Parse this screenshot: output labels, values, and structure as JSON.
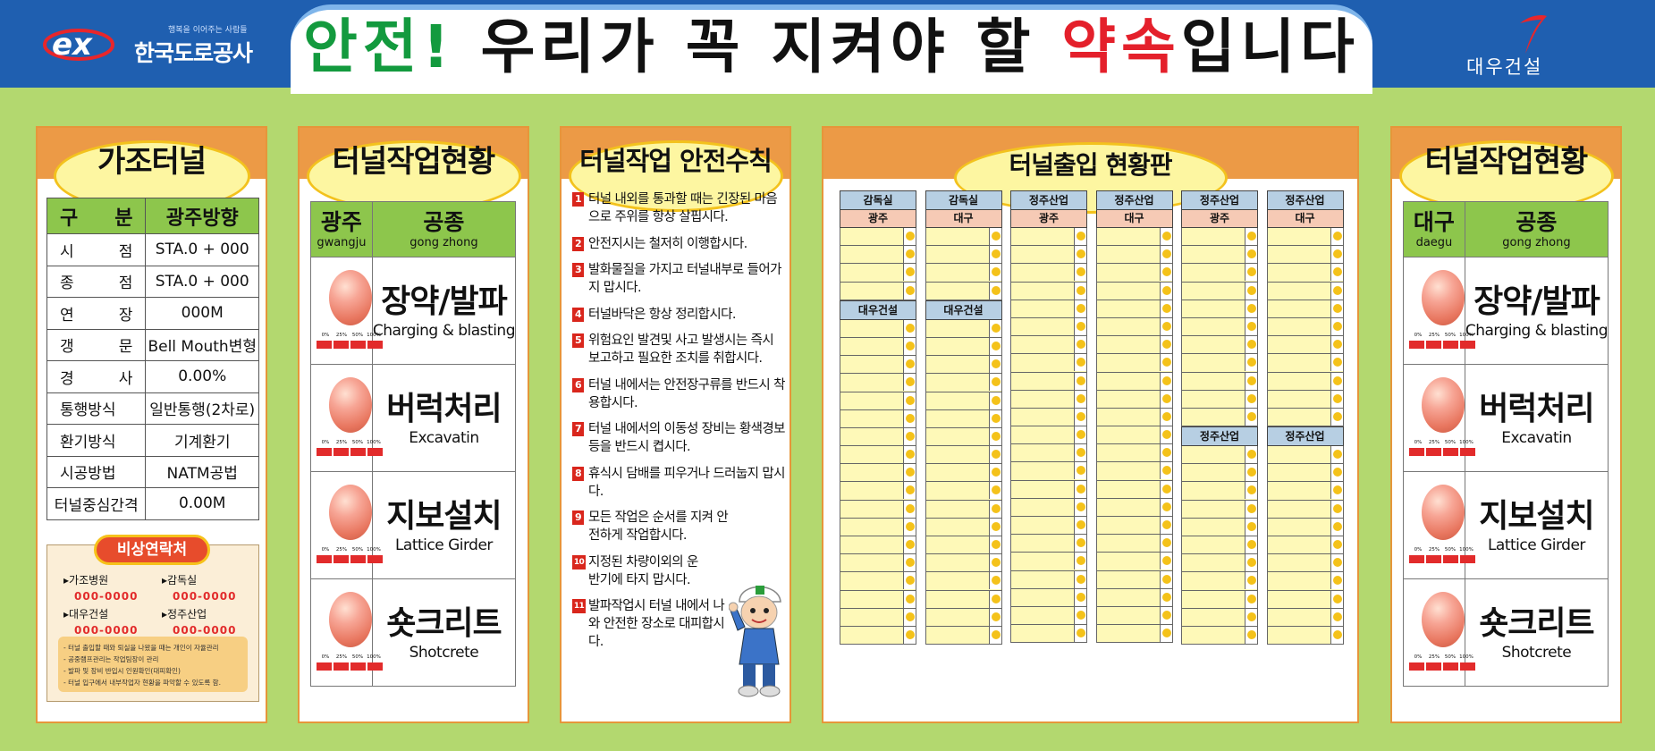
{
  "header": {
    "logo_left": {
      "slogan": "행복을 이어주는 사람들",
      "name": "한국도로공사"
    },
    "title": {
      "part1": "안전!",
      "part2": " 우리가 꼭 지켜야 할 ",
      "part3": "약속",
      "part4": "입니다"
    },
    "logo_right": {
      "name": "대우건설"
    }
  },
  "colors": {
    "header_blue": "#1f5fb0",
    "background_green": "#b3d86f",
    "panel_orange": "#ec9a46",
    "title_green": "#139a3e",
    "title_red": "#e4202b"
  },
  "tunnel_info": {
    "title": "가조터널",
    "head": [
      "구 분",
      "광주방향"
    ],
    "rows": [
      [
        "시 점",
        "STA.0 + 000"
      ],
      [
        "종 점",
        "STA.0 + 000"
      ],
      [
        "연 장",
        "000M"
      ],
      [
        "갱 문",
        "Bell Mouth변형"
      ],
      [
        "경 사",
        "0.00%"
      ],
      [
        "통행방식",
        "일반통행(2차로)"
      ],
      [
        "환기방식",
        "기계환기"
      ],
      [
        "시공방법",
        "NATM공법"
      ],
      [
        "터널중심간격",
        "0.00M"
      ]
    ],
    "emergency": {
      "badge": "비상연락처",
      "contacts": [
        {
          "name": "가조병원",
          "number": "000-0000"
        },
        {
          "name": "감독실",
          "number": "000-0000"
        },
        {
          "name": "대우건설",
          "number": "000-0000"
        },
        {
          "name": "정주산업",
          "number": "000-0000"
        }
      ],
      "notes": [
        "- 터널 출입할 때와 퇴실을 나왔을 때는 개인이 자율관리",
        "- 공중램프관리는 작업팀장이 관리",
        "- 발파 및 장비 반입시 인원확인(대피확인)",
        "- 터널 입구에서 내부작업자 현황을 파악할 수 있도록 함."
      ]
    }
  },
  "work_status_left": {
    "title": "터널작업현황",
    "head": {
      "region_ko": "광주",
      "region_en": "gwangju",
      "work_ko": "공종",
      "work_en": "gong zhong"
    },
    "percent_labels": [
      "0%",
      "25%",
      "50%",
      "100%"
    ],
    "items": [
      {
        "ko": "장약/발파",
        "en": "Charging & blasting",
        "icon": "progress-egg-icon"
      },
      {
        "ko": "버럭처리",
        "en": "Excavatin",
        "icon": "progress-egg-icon"
      },
      {
        "ko": "지보설치",
        "en": "Lattice Girder",
        "icon": "progress-egg-icon"
      },
      {
        "ko": "숏크리트",
        "en": "Shotcrete",
        "icon": "progress-egg-icon"
      }
    ]
  },
  "safety_rules": {
    "title": "터널작업 안전수칙",
    "rules": [
      {
        "n": "1",
        "text": "터널 내외를 통과할 때는 긴장된 마음으로 주위를 항상 살핍시다."
      },
      {
        "n": "2",
        "text": "안전지시는 철저히 이행합시다."
      },
      {
        "n": "3",
        "text": "발화물질을 가지고 터널내부로 들어가지 맙시다."
      },
      {
        "n": "4",
        "text": "터널바닥은 항상 정리합시다."
      },
      {
        "n": "5",
        "text": "위험요인 발견및 사고 발생시는 즉시 보고하고 필요한 조치를 취합시다."
      },
      {
        "n": "6",
        "text": "터널 내에서는 안전장구류를 반드시 착용합시다."
      },
      {
        "n": "7",
        "text": "터널 내에서의 이동성 장비는 황색경보등을 반드시 켭시다."
      },
      {
        "n": "8",
        "text": "휴식시 담배를 피우거나 드러눕지 맙시다."
      },
      {
        "n": "9",
        "text": "모든 작업은 순서를 지켜 안전하게 작업합시다."
      },
      {
        "n": "10",
        "text": "지정된 차량이외의 운반기에 타지 맙시다."
      },
      {
        "n": "11",
        "text": "발파작업시 터널 내에서 나와 안전한 장소로 대피합시다."
      }
    ]
  },
  "entry_board": {
    "title": "터널출입 현황판",
    "columns": [
      {
        "label": "감독실",
        "sub": "광주",
        "mid": "대우건설"
      },
      {
        "label": "감독실",
        "sub": "대구",
        "mid": "대우건설"
      },
      {
        "label": "정주산업",
        "sub": "광주",
        "mid": ""
      },
      {
        "label": "정주산업",
        "sub": "대구",
        "mid": ""
      },
      {
        "label": "정주산업",
        "sub": "광주",
        "mid": "정주산업"
      },
      {
        "label": "정주산업",
        "sub": "대구",
        "mid": "정주산업"
      }
    ]
  },
  "work_status_right": {
    "title": "터널작업현황",
    "head": {
      "region_ko": "대구",
      "region_en": "daegu",
      "work_ko": "공종",
      "work_en": "gong zhong"
    },
    "percent_labels": [
      "0%",
      "25%",
      "50%",
      "100%"
    ],
    "items": [
      {
        "ko": "장약/발파",
        "en": "Charging & blasting",
        "icon": "progress-egg-icon"
      },
      {
        "ko": "버럭처리",
        "en": "Excavatin",
        "icon": "progress-egg-icon"
      },
      {
        "ko": "지보설치",
        "en": "Lattice Girder",
        "icon": "progress-egg-icon"
      },
      {
        "ko": "숏크리트",
        "en": "Shotcrete",
        "icon": "progress-egg-icon"
      }
    ]
  }
}
